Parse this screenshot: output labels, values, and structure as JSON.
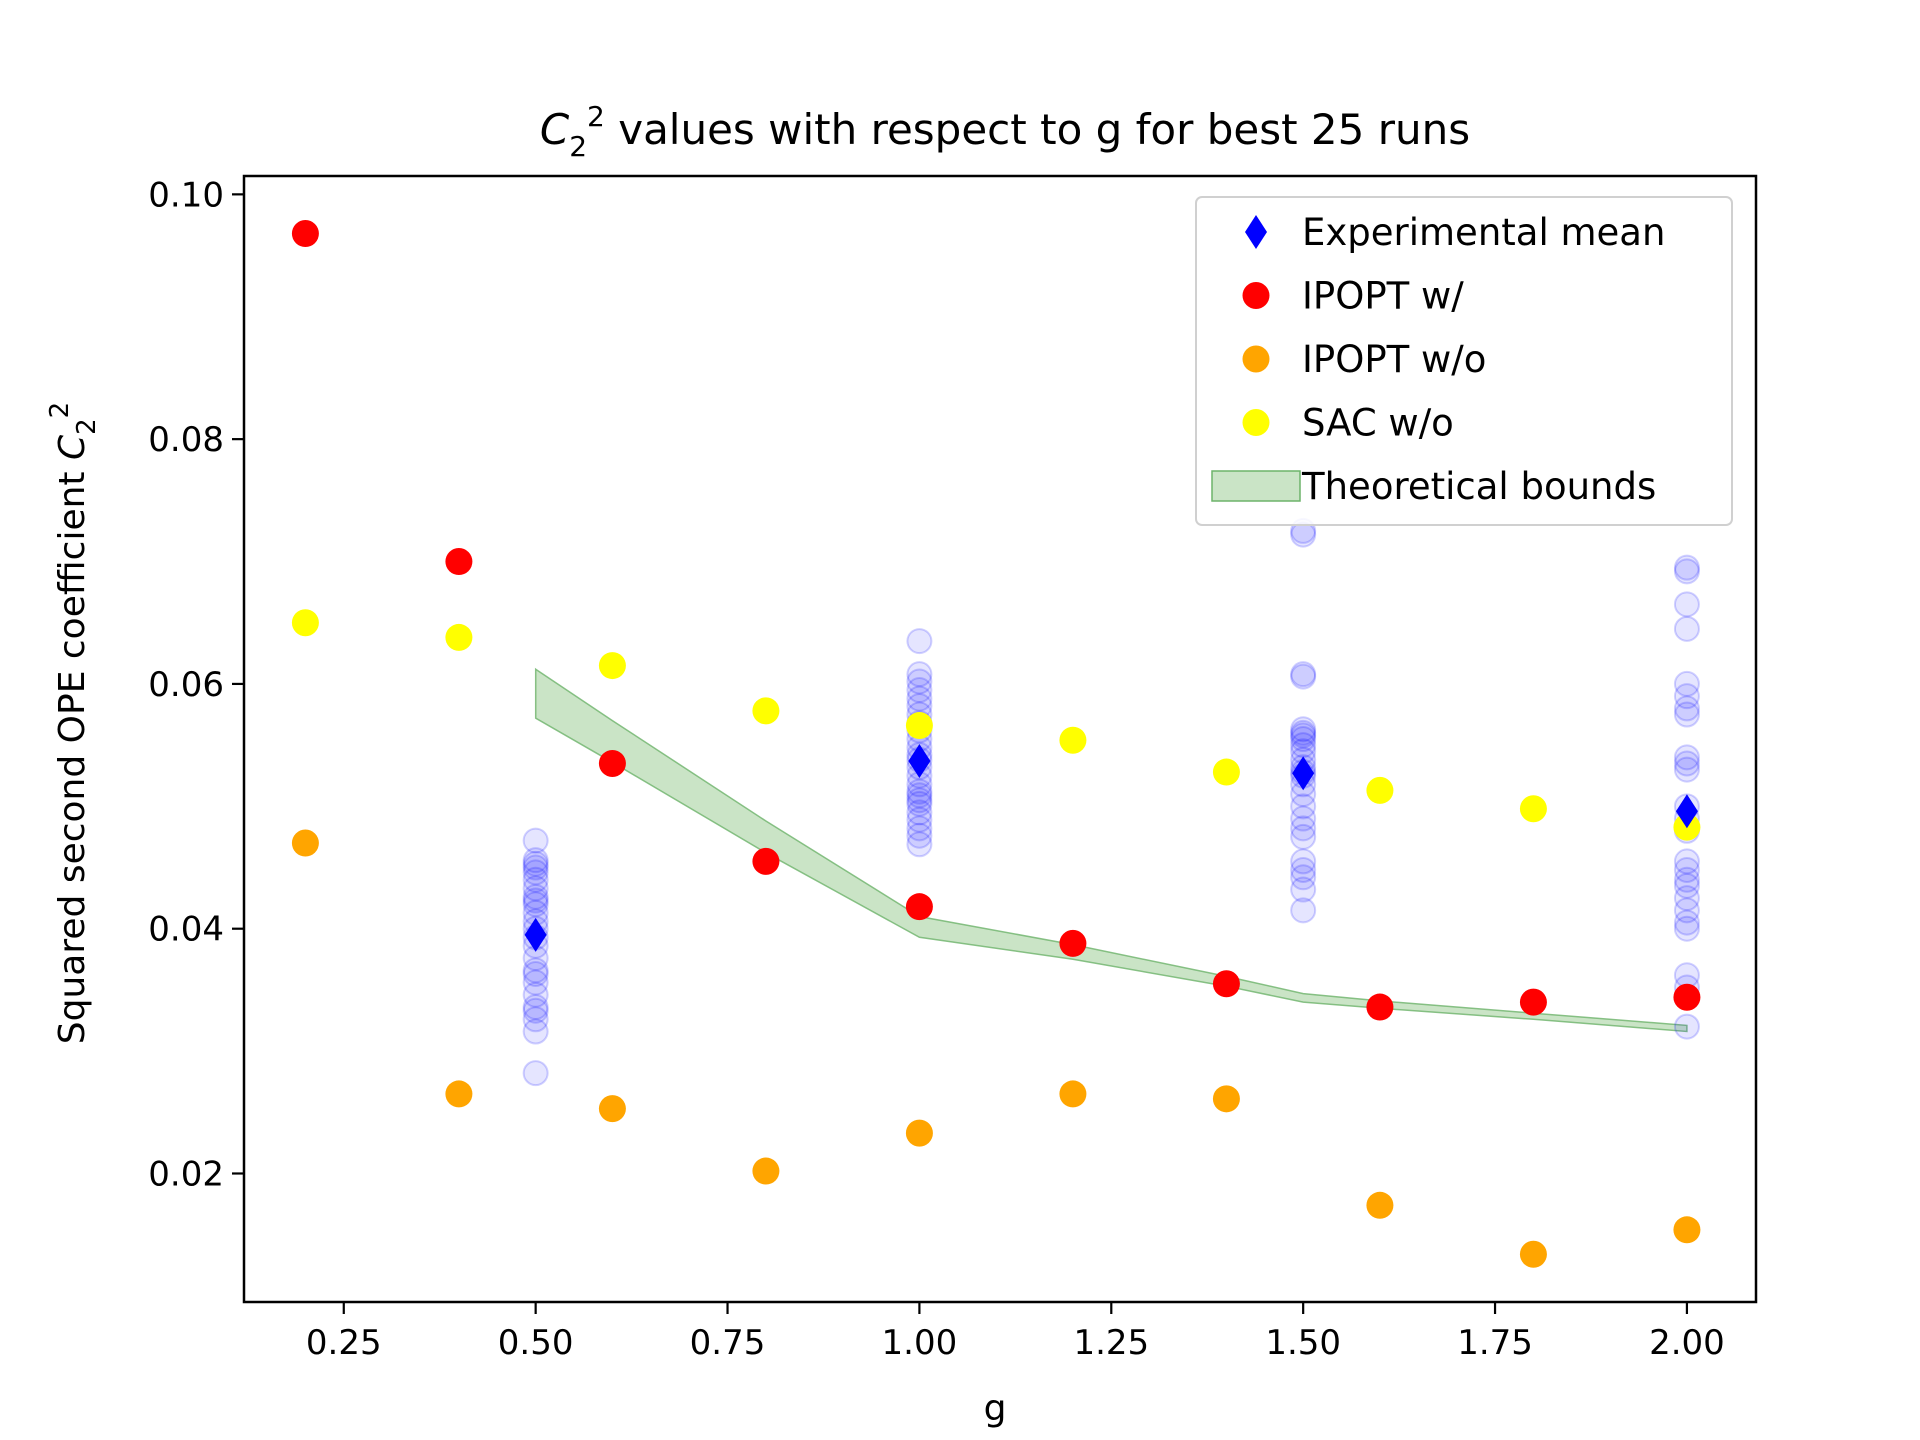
{
  "chart_data": {
    "type": "scatter",
    "title_symbol": "C",
    "title_sub": "2",
    "title_sup": "2",
    "title_text": " values with respect to g for best 25 runs",
    "xlabel": "g",
    "ylabel_text": "Squared second OPE coefficient ",
    "ylabel_symbol": "C",
    "ylabel_sub": "2",
    "ylabel_sup": "2",
    "xlim": [
      0.12,
      2.09
    ],
    "ylim": [
      0.0095,
      0.1015
    ],
    "xticks": [
      0.25,
      0.5,
      0.75,
      1.0,
      1.25,
      1.5,
      1.75,
      2.0
    ],
    "xtick_labels": [
      "0.25",
      "0.50",
      "0.75",
      "1.00",
      "1.25",
      "1.50",
      "1.75",
      "2.00"
    ],
    "yticks": [
      0.02,
      0.04,
      0.06,
      0.08,
      0.1
    ],
    "ytick_labels": [
      "0.02",
      "0.04",
      "0.06",
      "0.08",
      "0.10"
    ],
    "legend_position": "top-right",
    "colors": {
      "experimental": "#0000ff",
      "runs": "#0000ff",
      "ipopt_with": "#ff0000",
      "ipopt_without": "#ffa500",
      "sac_without": "#ffff00",
      "bounds_fill": "#aed6a8",
      "bounds_edge": "#6db36a"
    },
    "legend": [
      {
        "key": "experimental",
        "label": "Experimental mean",
        "marker": "diamond"
      },
      {
        "key": "ipopt_with",
        "label": "IPOPT w/",
        "marker": "circle"
      },
      {
        "key": "ipopt_without",
        "label": "IPOPT w/o",
        "marker": "circle"
      },
      {
        "key": "sac_without",
        "label": "SAC w/o",
        "marker": "circle"
      },
      {
        "key": "bounds",
        "label": "Theoretical bounds",
        "marker": "band"
      }
    ],
    "series": [
      {
        "key": "ipopt_with",
        "name": "IPOPT w/",
        "x": [
          0.2,
          0.4,
          0.6,
          0.8,
          1.0,
          1.2,
          1.4,
          1.6,
          1.8,
          2.0
        ],
        "y": [
          0.0968,
          0.07,
          0.0535,
          0.0455,
          0.0418,
          0.0388,
          0.0355,
          0.0336,
          0.034,
          0.0344
        ]
      },
      {
        "key": "ipopt_without",
        "name": "IPOPT w/o",
        "x": [
          0.2,
          0.4,
          0.6,
          0.8,
          1.0,
          1.2,
          1.4,
          1.6,
          1.8,
          2.0
        ],
        "y": [
          0.047,
          0.0265,
          0.0253,
          0.0202,
          0.0233,
          0.0265,
          0.0261,
          0.0174,
          0.0134,
          0.0154
        ]
      },
      {
        "key": "sac_without",
        "name": "SAC w/o",
        "x": [
          0.2,
          0.4,
          0.6,
          0.8,
          1.0,
          1.2,
          1.4,
          1.6,
          1.8,
          2.0
        ],
        "y": [
          0.065,
          0.0638,
          0.0615,
          0.0578,
          0.0566,
          0.0554,
          0.0528,
          0.0513,
          0.0498,
          0.0483
        ]
      },
      {
        "key": "experimental",
        "name": "Experimental mean",
        "x": [
          0.5,
          1.0,
          1.5,
          2.0
        ],
        "y": [
          0.0395,
          0.0537,
          0.0527,
          0.0496
        ]
      }
    ],
    "runs": [
      {
        "x": 0.5,
        "y": [
          0.0282,
          0.0316,
          0.0326,
          0.0333,
          0.0336,
          0.0346,
          0.0356,
          0.0363,
          0.0366,
          0.0376,
          0.0386,
          0.0393,
          0.04,
          0.0406,
          0.0413,
          0.042,
          0.0423,
          0.0426,
          0.0433,
          0.044,
          0.0446,
          0.045,
          0.0453,
          0.0456,
          0.0472
        ]
      },
      {
        "x": 1.0,
        "y": [
          0.0469,
          0.0476,
          0.0482,
          0.0489,
          0.0495,
          0.0502,
          0.0505,
          0.0509,
          0.0512,
          0.0518,
          0.0525,
          0.0532,
          0.0538,
          0.0542,
          0.0548,
          0.0555,
          0.0562,
          0.0568,
          0.0575,
          0.0582,
          0.0588,
          0.0595,
          0.0602,
          0.0608,
          0.0635
        ]
      },
      {
        "x": 1.5,
        "y": [
          0.0415,
          0.0432,
          0.0442,
          0.0448,
          0.0455,
          0.0475,
          0.0482,
          0.049,
          0.05,
          0.051,
          0.0518,
          0.0525,
          0.0528,
          0.0532,
          0.0538,
          0.0545,
          0.055,
          0.0555,
          0.0558,
          0.056,
          0.0563,
          0.0606,
          0.0608,
          0.0722,
          0.0725
        ]
      },
      {
        "x": 2.0,
        "y": [
          0.032,
          0.0352,
          0.0362,
          0.04,
          0.0405,
          0.0415,
          0.0425,
          0.0435,
          0.044,
          0.0448,
          0.0455,
          0.048,
          0.049,
          0.05,
          0.053,
          0.0535,
          0.054,
          0.0575,
          0.058,
          0.059,
          0.06,
          0.0645,
          0.0665,
          0.0692,
          0.0695
        ]
      }
    ],
    "bounds": {
      "x": [
        0.5,
        0.6,
        0.8,
        1.0,
        1.2,
        1.4,
        1.5,
        1.6,
        1.8,
        2.0
      ],
      "lower": [
        0.0572,
        0.0536,
        0.0462,
        0.0393,
        0.0375,
        0.0353,
        0.034,
        0.0335,
        0.0326,
        0.0316
      ],
      "upper": [
        0.0612,
        0.057,
        0.0488,
        0.041,
        0.0387,
        0.0361,
        0.0347,
        0.0341,
        0.0331,
        0.0321
      ]
    }
  }
}
